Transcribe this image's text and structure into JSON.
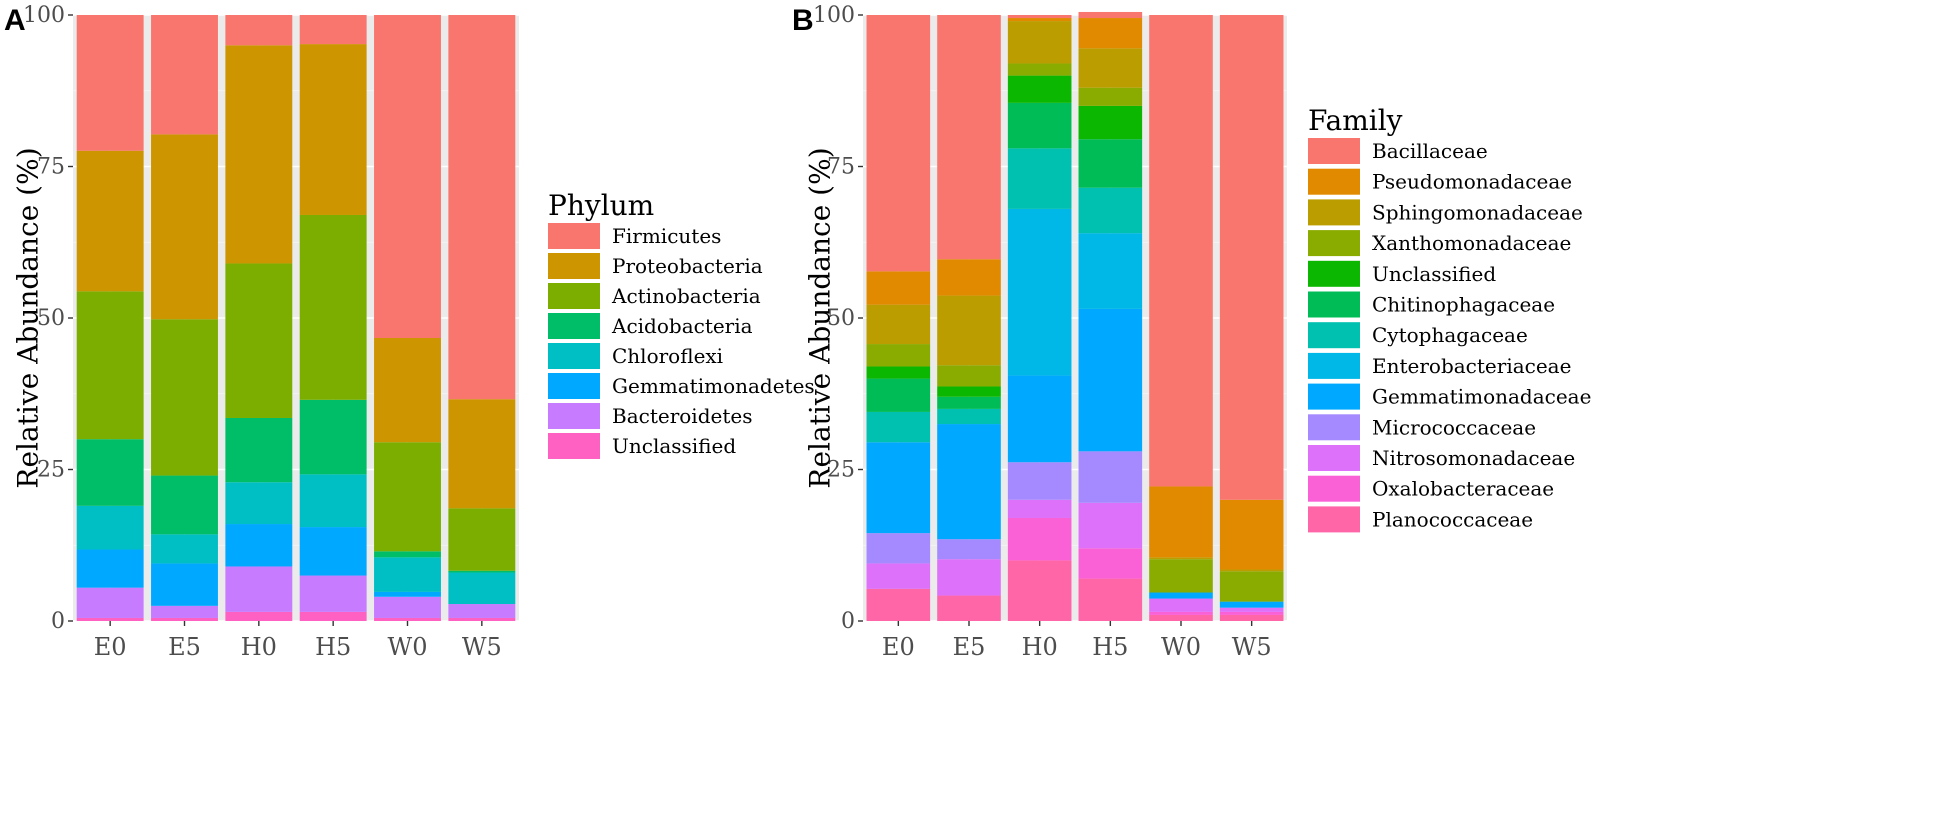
{
  "chart_data": [
    {
      "type": "bar",
      "stacked": true,
      "panel_label": "A",
      "categories": [
        "E0",
        "E5",
        "H0",
        "H5",
        "W0",
        "W5"
      ],
      "ylabel": "Relative Abundance (%)",
      "ylim": [
        0,
        100
      ],
      "yticks": [
        "0",
        "25",
        "50",
        "75",
        "100"
      ],
      "grid": true,
      "legend": {
        "title": "Phylum",
        "position": "right"
      },
      "series": [
        {
          "name": "Unclassified",
          "color": "#FF61C3",
          "values": [
            0.5,
            0.5,
            1.5,
            1.5,
            0.5,
            0.5
          ]
        },
        {
          "name": "Bacteroidetes",
          "color": "#C77CFF",
          "values": [
            5,
            2,
            7.5,
            6,
            3.5,
            2.3
          ]
        },
        {
          "name": "Gemmatimonadetes",
          "color": "#00A9FF",
          "values": [
            6.3,
            7,
            7,
            8,
            0.8,
            0
          ]
        },
        {
          "name": "Chloroflexi",
          "color": "#00BFC4",
          "values": [
            7.2,
            4.8,
            6.9,
            8.7,
            5.7,
            5.2
          ]
        },
        {
          "name": "Acidobacteria",
          "color": "#00BE67",
          "values": [
            11,
            9.7,
            10.6,
            12.3,
            1,
            0.3
          ]
        },
        {
          "name": "Actinobacteria",
          "color": "#7CAE00",
          "values": [
            24.4,
            25.8,
            25.5,
            30.5,
            18,
            10.3
          ]
        },
        {
          "name": "Proteobacteria",
          "color": "#CD9600",
          "values": [
            23.2,
            30.5,
            36,
            28.2,
            17.2,
            18
          ]
        },
        {
          "name": "Firmicutes",
          "color": "#F8766D",
          "values": [
            22.4,
            19.7,
            5,
            4.8,
            53.3,
            63.4
          ]
        }
      ]
    },
    {
      "type": "bar",
      "stacked": true,
      "panel_label": "B",
      "categories": [
        "E0",
        "E5",
        "H0",
        "H5",
        "W0",
        "W5"
      ],
      "ylabel": "Relative Abundance (%)",
      "ylim": [
        0,
        100
      ],
      "yticks": [
        "0",
        "25",
        "50",
        "75",
        "100"
      ],
      "grid": true,
      "legend": {
        "title": "Family",
        "position": "right"
      },
      "series": [
        {
          "name": "Planococcaceae",
          "color": "#FF66A8",
          "values": [
            5.3,
            4.2,
            10,
            7,
            1,
            1
          ]
        },
        {
          "name": "Oxalobacteraceae",
          "color": "#FB61D7",
          "values": [
            0,
            0,
            7,
            5,
            0.5,
            0.5
          ]
        },
        {
          "name": "Nitrosomonadaceae",
          "color": "#DE71F9",
          "values": [
            4.2,
            6,
            3,
            7.5,
            2.2,
            0.7
          ]
        },
        {
          "name": "Micrococcaceae",
          "color": "#A58AFF",
          "values": [
            5,
            3.3,
            6.2,
            8.5,
            0,
            0
          ]
        },
        {
          "name": "Gemmatimonadaceae",
          "color": "#00A9FF",
          "values": [
            15,
            19,
            14.3,
            23.5,
            1,
            1
          ]
        },
        {
          "name": "Enterobacteriaceae",
          "color": "#00B8E7",
          "values": [
            0,
            0,
            27.5,
            12.5,
            0,
            0
          ]
        },
        {
          "name": "Cytophagaceae",
          "color": "#00C0AF",
          "values": [
            5,
            2.5,
            10,
            7.5,
            0,
            0
          ]
        },
        {
          "name": "Chitinophagaceae",
          "color": "#00BC56",
          "values": [
            5.5,
            2,
            7.5,
            8,
            0,
            0
          ]
        },
        {
          "name": "Unclassified",
          "color": "#0CB702",
          "values": [
            2,
            1.7,
            4.5,
            5.5,
            0,
            0
          ]
        },
        {
          "name": "Xanthomonadaceae",
          "color": "#8AAB00",
          "values": [
            3.7,
            3.5,
            2,
            3,
            5.5,
            5
          ]
        },
        {
          "name": "Sphingomonadaceae",
          "color": "#BB9D00",
          "values": [
            6.5,
            11.5,
            7,
            6.5,
            0.3,
            0.3
          ]
        },
        {
          "name": "Pseudomonadaceae",
          "color": "#E18A00",
          "values": [
            5.5,
            6,
            0.5,
            5,
            11.7,
            11.5
          ]
        },
        {
          "name": "Bacillaceae",
          "color": "#F8766D",
          "values": [
            42.3,
            40.3,
            0.5,
            1,
            77.8,
            80
          ]
        }
      ]
    }
  ]
}
